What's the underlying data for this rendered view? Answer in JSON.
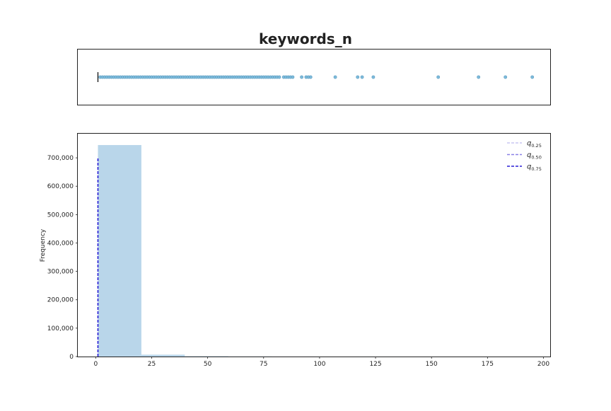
{
  "title": "keywords_n",
  "colors": {
    "bar_fill": "#b9d6ea",
    "outlier_fill": "#7fbcdc",
    "outlier_edge": "#5a9bbf",
    "axis": "#222222",
    "q025": "#c9c5f2",
    "q050": "#8a80e6",
    "q075": "#2a1fd6"
  },
  "chart_data": [
    {
      "type": "box",
      "title": "keywords_n",
      "whisker": {
        "low": 1,
        "high": 1
      },
      "quartiles": {
        "q1": 1,
        "median": 1,
        "q3": 1
      },
      "outliers": [
        2,
        3,
        4,
        5,
        6,
        7,
        8,
        9,
        10,
        11,
        12,
        13,
        14,
        15,
        16,
        17,
        18,
        19,
        20,
        21,
        22,
        23,
        24,
        25,
        26,
        27,
        28,
        29,
        30,
        31,
        32,
        33,
        34,
        35,
        36,
        37,
        38,
        39,
        40,
        41,
        42,
        43,
        44,
        45,
        46,
        47,
        48,
        49,
        50,
        51,
        52,
        53,
        54,
        55,
        56,
        57,
        58,
        59,
        60,
        61,
        62,
        63,
        64,
        65,
        66,
        67,
        68,
        69,
        70,
        71,
        72,
        73,
        74,
        75,
        76,
        77,
        78,
        79,
        80,
        81,
        82,
        84,
        85,
        86,
        87,
        88,
        92,
        94,
        95,
        96,
        107,
        117,
        119,
        124,
        153,
        171,
        183,
        195
      ]
    },
    {
      "type": "histogram",
      "ylabel": "Frequency",
      "xlim": [
        -8,
        203
      ],
      "ylim": [
        0,
        785000
      ],
      "xticks": [
        0,
        25,
        50,
        75,
        100,
        125,
        150,
        175,
        200
      ],
      "yticks": [
        0,
        100000,
        200000,
        300000,
        400000,
        500000,
        600000,
        700000
      ],
      "ytick_labels": [
        "0",
        "100,000",
        "200,000",
        "300,000",
        "400,000",
        "500,000",
        "600,000",
        "700,000"
      ],
      "bins": [
        {
          "start": 1,
          "end": 20.4,
          "count": 745000
        },
        {
          "start": 20.4,
          "end": 39.8,
          "count": 6500
        },
        {
          "start": 39.8,
          "end": 59.2,
          "count": 1200
        },
        {
          "start": 59.2,
          "end": 78.6,
          "count": 400
        },
        {
          "start": 78.6,
          "end": 98,
          "count": 150
        },
        {
          "start": 98,
          "end": 117.4,
          "count": 60
        },
        {
          "start": 117.4,
          "end": 136.8,
          "count": 30
        },
        {
          "start": 136.8,
          "end": 156.2,
          "count": 10
        },
        {
          "start": 156.2,
          "end": 175.6,
          "count": 5
        },
        {
          "start": 175.6,
          "end": 195,
          "count": 5
        }
      ],
      "quantile_lines": [
        {
          "name": "q0.25",
          "x": 1,
          "ymax": 700000,
          "color_key": "q025"
        },
        {
          "name": "q0.50",
          "x": 1,
          "ymax": 700000,
          "color_key": "q050"
        },
        {
          "name": "q0.75",
          "x": 1,
          "ymax": 700000,
          "color_key": "q075"
        }
      ],
      "legend": {
        "position": "top-right",
        "entries": [
          {
            "base": "q",
            "sub": "0.25",
            "color_key": "q025"
          },
          {
            "base": "q",
            "sub": "0.50",
            "color_key": "q050"
          },
          {
            "base": "q",
            "sub": "0.75",
            "color_key": "q075"
          }
        ]
      }
    }
  ]
}
